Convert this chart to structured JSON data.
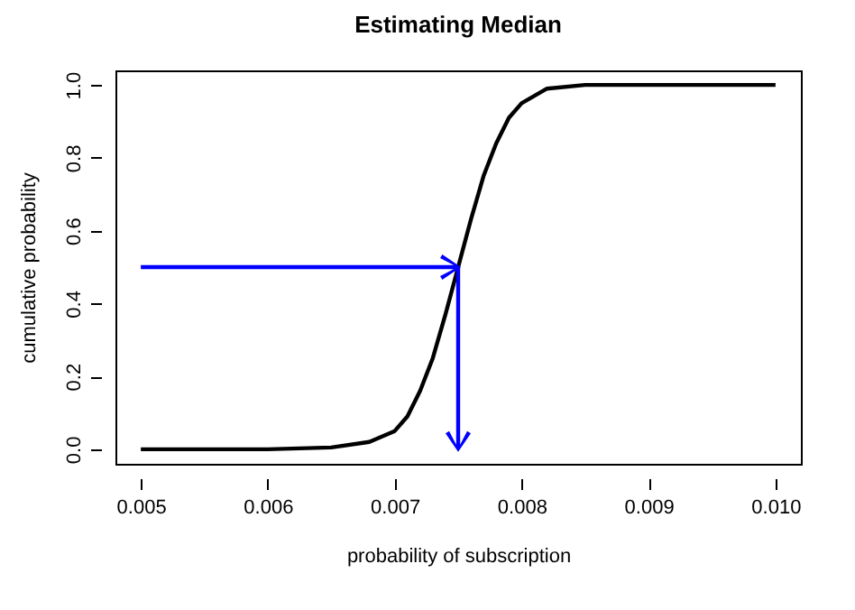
{
  "chart_data": {
    "type": "line",
    "title": "Estimating Median",
    "xlabel": "probability of subscription",
    "ylabel": "cumulative probability",
    "xlim": [
      0.0048,
      0.0102
    ],
    "ylim": [
      -0.04,
      1.04
    ],
    "xticks": [
      0.005,
      0.006,
      0.007,
      0.008,
      0.009,
      {
        "value": 0.01,
        "label": "0.010"
      }
    ],
    "yticks": [
      {
        "value": 0,
        "label": "0.0"
      },
      0.2,
      0.4,
      0.6,
      0.8,
      {
        "value": 1,
        "label": "1.0"
      }
    ],
    "grid": false,
    "legend": false,
    "marker": "none",
    "line_style": "solid",
    "series": [
      {
        "color": "#000000",
        "x": [
          0.005,
          0.006,
          0.0065,
          0.0068,
          0.007,
          0.0071,
          0.0072,
          0.0073,
          0.0074,
          0.0075,
          0.0076,
          0.0077,
          0.0078,
          0.0079,
          0.008,
          0.0082,
          0.0085,
          0.009,
          0.01
        ],
        "values": [
          0,
          0,
          0.005,
          0.02,
          0.05,
          0.09,
          0.16,
          0.25,
          0.37,
          0.5,
          0.63,
          0.75,
          0.84,
          0.91,
          0.95,
          0.99,
          1,
          1,
          1
        ]
      }
    ]
  }
}
